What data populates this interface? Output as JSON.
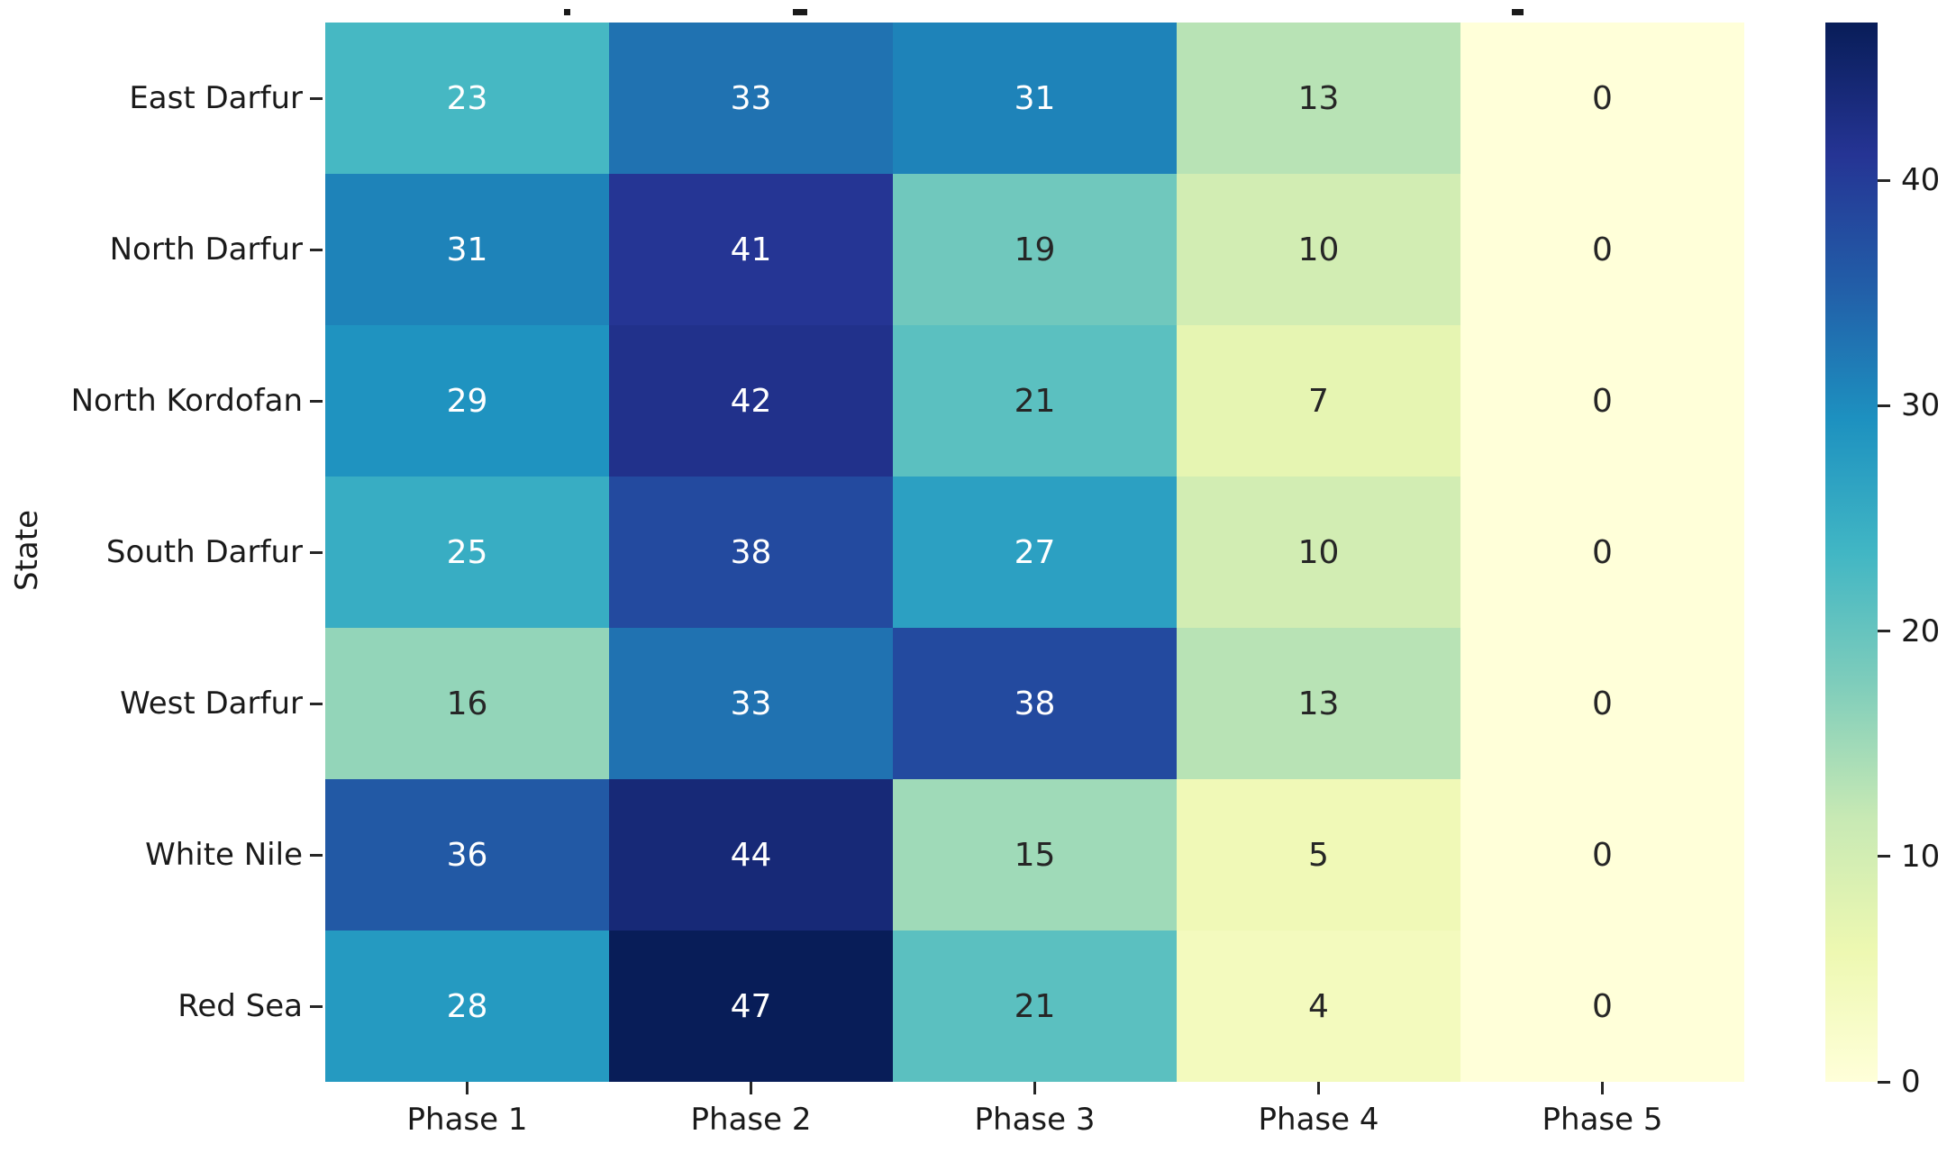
{
  "chart_data": {
    "type": "heatmap",
    "title": "",
    "xlabel": "",
    "ylabel": "State",
    "x_categories": [
      "Phase 1",
      "Phase 2",
      "Phase 3",
      "Phase 4",
      "Phase 5"
    ],
    "y_categories": [
      "East Darfur",
      "North Darfur",
      "North Kordofan",
      "South Darfur",
      "West Darfur",
      "White Nile",
      "Red Sea"
    ],
    "values": [
      [
        23,
        33,
        31,
        13,
        0
      ],
      [
        31,
        41,
        19,
        10,
        0
      ],
      [
        29,
        42,
        21,
        7,
        0
      ],
      [
        25,
        38,
        27,
        10,
        0
      ],
      [
        16,
        33,
        38,
        13,
        0
      ],
      [
        36,
        44,
        15,
        5,
        0
      ],
      [
        28,
        47,
        21,
        4,
        0
      ]
    ],
    "vmin": 0,
    "vmax": 47,
    "colorbar": {
      "ticks": [
        0,
        10,
        20,
        30,
        40
      ],
      "position": "right"
    },
    "colormap": {
      "name": "YlGnBu",
      "stops": [
        "#ffffd9",
        "#edf8b1",
        "#c7e9b4",
        "#7fcdbb",
        "#41b6c4",
        "#1d91c0",
        "#225ea8",
        "#253494",
        "#081d58"
      ]
    },
    "annotation_colors": {
      "on_dark": "#ffffff",
      "on_light": "#262626"
    },
    "axis_text_color": "#1a1a1a",
    "grid": false,
    "legend": false
  }
}
